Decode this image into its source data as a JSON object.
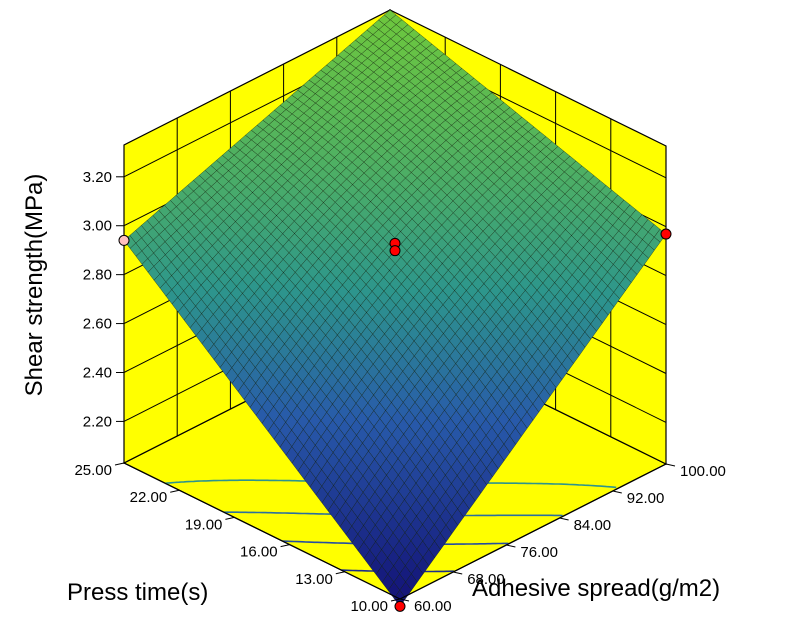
{
  "chart_data": {
    "type": "surface",
    "xlabel": "Adhesive spread(g/m2)",
    "ylabel": "Press time(s)",
    "zlabel": "Shear strength(MPa)",
    "x_ticks": [
      "60.00",
      "68.00",
      "76.00",
      "84.00",
      "92.00",
      "100.00"
    ],
    "y_ticks": [
      "10.00",
      "13.00",
      "16.00",
      "19.00",
      "22.00",
      "25.00"
    ],
    "z_ticks": [
      "2.20",
      "2.40",
      "2.60",
      "2.80",
      "3.00",
      "3.20"
    ],
    "xlim": [
      60,
      100
    ],
    "ylim": [
      10,
      25
    ],
    "zlim": [
      2.03,
      3.33
    ],
    "surface_corners": [
      {
        "x": 60,
        "y": 10,
        "z": 2.0
      },
      {
        "x": 100,
        "y": 10,
        "z": 2.97
      },
      {
        "x": 60,
        "y": 25,
        "z": 2.94
      },
      {
        "x": 100,
        "y": 25,
        "z": 3.33
      }
    ],
    "surface_center": {
      "x": 80,
      "y": 17.5,
      "z": 2.9
    },
    "design_points": [
      {
        "x": 60,
        "y": 10,
        "z": 2.0
      },
      {
        "x": 100,
        "y": 10,
        "z": 2.97
      },
      {
        "x": 60,
        "y": 25,
        "z": 2.94
      },
      {
        "x": 80,
        "y": 17.5,
        "z": 2.93
      },
      {
        "x": 80,
        "y": 17.5,
        "z": 2.9
      }
    ],
    "floor_contour_levels": [
      2.2,
      2.4,
      2.6,
      2.8
    ],
    "colors": {
      "wall": "#ffff00",
      "surface_low": "#1a1a80",
      "surface_mid": "#2e9a8a",
      "surface_high": "#6dbb3a",
      "point": "#ff0000"
    }
  }
}
